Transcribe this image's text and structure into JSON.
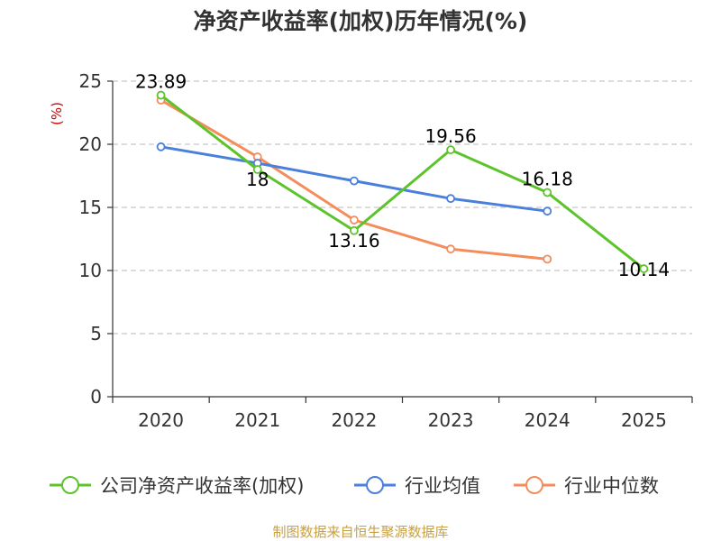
{
  "chart_data": {
    "type": "line",
    "title": "净资产收益率(加权)历年情况(%)",
    "ylabel": "(%)",
    "xlabel": "",
    "categories": [
      "2020",
      "2021",
      "2022",
      "2023",
      "2024",
      "2025"
    ],
    "ylim": [
      0,
      25
    ],
    "yticks": [
      0,
      5,
      10,
      15,
      20,
      25
    ],
    "grid": true,
    "legend_position": "bottom",
    "series": [
      {
        "name": "公司净资产收益率(加权)",
        "color": "#5cc42a",
        "values": [
          23.89,
          18,
          13.16,
          19.56,
          16.18,
          10.14
        ],
        "labels": [
          "23.89",
          "18",
          "13.16",
          "19.56",
          "16.18",
          "10.14"
        ]
      },
      {
        "name": "行业均值",
        "color": "#4a7fdc",
        "values": [
          19.8,
          18.5,
          17.1,
          15.7,
          14.7,
          null
        ]
      },
      {
        "name": "行业中位数",
        "color": "#f48c5c",
        "values": [
          23.5,
          19.0,
          14.0,
          11.7,
          10.9,
          null
        ]
      }
    ]
  },
  "footer": "制图数据来自恒生聚源数据库"
}
